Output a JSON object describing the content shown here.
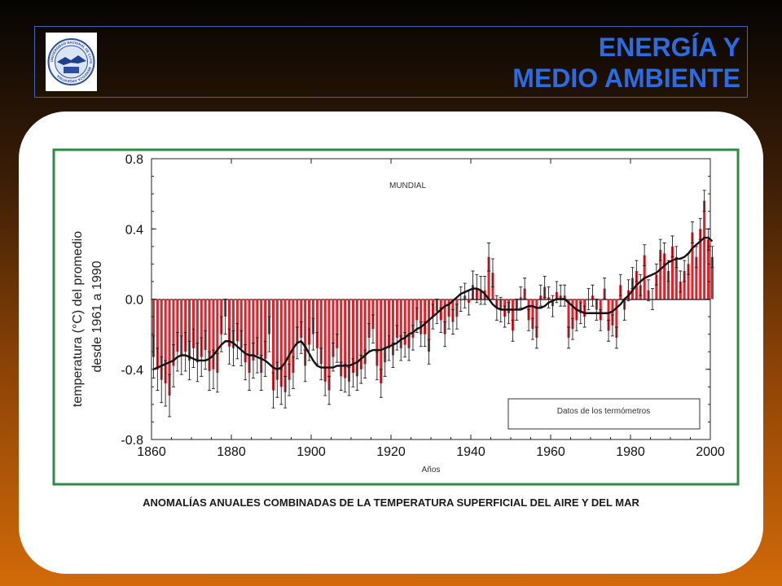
{
  "header": {
    "title_line1": "ENERGÍA Y",
    "title_line2": "MEDIO AMBIENTE"
  },
  "logo": {
    "ring_text": "UNIVERSIDAD NACIONAL DE CUYO · MENDOZA ARGENTINA"
  },
  "caption": "ANOMALÍAS ANUALES COMBINADAS DE LA TEMPERATURA SUPERFICIAL DEL AIRE Y DEL MAR",
  "colors": {
    "bar": "#d8262f",
    "smooth_line": "#111111",
    "frame_border": "#2e8b45",
    "title": "#2d6be0"
  },
  "chart_data": {
    "type": "bar",
    "annotation": "MUNDIAL",
    "legend_label": "Datos de los termómetros",
    "legend_position": "bottom-right",
    "xlabel": "Años",
    "ylabel_line1": "temperatura (°C) del promedio",
    "ylabel_line2": "desde 1961 a 1990",
    "xlim": [
      1860,
      2000
    ],
    "ylim": [
      -0.8,
      0.8
    ],
    "x_ticks": [
      "1860",
      "1880",
      "1900",
      "1920",
      "1940",
      "1960",
      "1980",
      "2000"
    ],
    "y_ticks": [
      "0.8",
      "0.4",
      "0.0",
      "-0.4",
      "-0.8"
    ],
    "grid": false,
    "years": [
      1860,
      1861,
      1862,
      1863,
      1864,
      1865,
      1866,
      1867,
      1868,
      1869,
      1870,
      1871,
      1872,
      1873,
      1874,
      1875,
      1876,
      1877,
      1878,
      1879,
      1880,
      1881,
      1882,
      1883,
      1884,
      1885,
      1886,
      1887,
      1888,
      1889,
      1890,
      1891,
      1892,
      1893,
      1894,
      1895,
      1896,
      1897,
      1898,
      1899,
      1900,
      1901,
      1902,
      1903,
      1904,
      1905,
      1906,
      1907,
      1908,
      1909,
      1910,
      1911,
      1912,
      1913,
      1914,
      1915,
      1916,
      1917,
      1918,
      1919,
      1920,
      1921,
      1922,
      1923,
      1924,
      1925,
      1926,
      1927,
      1928,
      1929,
      1930,
      1931,
      1932,
      1933,
      1934,
      1935,
      1936,
      1937,
      1938,
      1939,
      1940,
      1941,
      1942,
      1943,
      1944,
      1945,
      1946,
      1947,
      1948,
      1949,
      1950,
      1951,
      1952,
      1953,
      1954,
      1955,
      1956,
      1957,
      1958,
      1959,
      1960,
      1961,
      1962,
      1963,
      1964,
      1965,
      1966,
      1967,
      1968,
      1969,
      1970,
      1971,
      1972,
      1973,
      1974,
      1975,
      1976,
      1977,
      1978,
      1979,
      1980,
      1981,
      1982,
      1983,
      1984,
      1985,
      1986,
      1987,
      1988,
      1989,
      1990,
      1991,
      1992,
      1993,
      1994,
      1995,
      1996,
      1997,
      1998,
      1999,
      2000
    ],
    "values": [
      -0.33,
      -0.4,
      -0.46,
      -0.48,
      -0.55,
      -0.38,
      -0.3,
      -0.32,
      -0.3,
      -0.35,
      -0.28,
      -0.36,
      -0.33,
      -0.29,
      -0.41,
      -0.4,
      -0.42,
      -0.2,
      -0.1,
      -0.27,
      -0.28,
      -0.24,
      -0.28,
      -0.36,
      -0.42,
      -0.35,
      -0.32,
      -0.42,
      -0.34,
      -0.2,
      -0.52,
      -0.46,
      -0.5,
      -0.53,
      -0.46,
      -0.42,
      -0.25,
      -0.22,
      -0.38,
      -0.26,
      -0.2,
      -0.28,
      -0.37,
      -0.47,
      -0.52,
      -0.33,
      -0.28,
      -0.44,
      -0.45,
      -0.47,
      -0.42,
      -0.44,
      -0.4,
      -0.37,
      -0.22,
      -0.17,
      -0.38,
      -0.48,
      -0.36,
      -0.28,
      -0.32,
      -0.22,
      -0.28,
      -0.26,
      -0.28,
      -0.22,
      -0.12,
      -0.2,
      -0.2,
      -0.3,
      -0.1,
      -0.07,
      -0.12,
      -0.2,
      -0.1,
      -0.13,
      -0.1,
      0.0,
      0.02,
      -0.02,
      0.08,
      0.06,
      0.05,
      0.05,
      0.24,
      0.15,
      -0.05,
      -0.06,
      -0.1,
      -0.08,
      -0.18,
      -0.06,
      0.01,
      0.06,
      -0.12,
      -0.17,
      -0.22,
      0.02,
      0.07,
      0.01,
      -0.04,
      0.04,
      0.02,
      0.02,
      -0.22,
      -0.17,
      -0.12,
      -0.08,
      -0.1,
      0.0,
      0.02,
      -0.06,
      -0.12,
      0.06,
      -0.18,
      -0.15,
      -0.22,
      0.08,
      -0.06,
      0.05,
      0.12,
      0.16,
      0.08,
      0.25,
      0.05,
      0.0,
      0.14,
      0.28,
      0.26,
      0.16,
      0.3,
      0.24,
      0.1,
      0.16,
      0.2,
      0.38,
      0.24,
      0.4,
      0.56,
      0.34,
      0.24
    ],
    "smoothed": [
      -0.4,
      -0.39,
      -0.38,
      -0.37,
      -0.36,
      -0.35,
      -0.33,
      -0.32,
      -0.32,
      -0.33,
      -0.34,
      -0.35,
      -0.35,
      -0.35,
      -0.34,
      -0.32,
      -0.29,
      -0.26,
      -0.24,
      -0.24,
      -0.25,
      -0.27,
      -0.29,
      -0.31,
      -0.32,
      -0.32,
      -0.33,
      -0.34,
      -0.35,
      -0.37,
      -0.39,
      -0.4,
      -0.39,
      -0.36,
      -0.32,
      -0.28,
      -0.25,
      -0.24,
      -0.27,
      -0.31,
      -0.35,
      -0.38,
      -0.39,
      -0.39,
      -0.39,
      -0.39,
      -0.38,
      -0.38,
      -0.38,
      -0.38,
      -0.37,
      -0.36,
      -0.34,
      -0.32,
      -0.3,
      -0.29,
      -0.29,
      -0.29,
      -0.28,
      -0.27,
      -0.26,
      -0.25,
      -0.23,
      -0.22,
      -0.2,
      -0.19,
      -0.17,
      -0.16,
      -0.14,
      -0.12,
      -0.1,
      -0.08,
      -0.06,
      -0.04,
      -0.03,
      -0.01,
      0.01,
      0.03,
      0.04,
      0.05,
      0.06,
      0.06,
      0.05,
      0.03,
      0.0,
      -0.03,
      -0.05,
      -0.06,
      -0.06,
      -0.06,
      -0.06,
      -0.06,
      -0.06,
      -0.05,
      -0.04,
      -0.04,
      -0.05,
      -0.05,
      -0.04,
      -0.02,
      -0.01,
      0.0,
      0.0,
      0.0,
      -0.02,
      -0.04,
      -0.06,
      -0.07,
      -0.08,
      -0.08,
      -0.08,
      -0.08,
      -0.08,
      -0.08,
      -0.08,
      -0.07,
      -0.05,
      -0.03,
      0.0,
      0.02,
      0.05,
      0.08,
      0.1,
      0.12,
      0.13,
      0.14,
      0.15,
      0.17,
      0.19,
      0.21,
      0.22,
      0.23,
      0.23,
      0.24,
      0.26,
      0.29,
      0.31,
      0.33,
      0.35,
      0.35,
      0.33
    ],
    "error": [
      0.12,
      0.12,
      0.13,
      0.13,
      0.12,
      0.12,
      0.11,
      0.11,
      0.11,
      0.11,
      0.11,
      0.11,
      0.11,
      0.11,
      0.11,
      0.11,
      0.11,
      0.1,
      0.1,
      0.1,
      0.1,
      0.1,
      0.1,
      0.1,
      0.1,
      0.1,
      0.1,
      0.1,
      0.1,
      0.1,
      0.1,
      0.1,
      0.1,
      0.09,
      0.09,
      0.09,
      0.09,
      0.09,
      0.09,
      0.09,
      0.09,
      0.09,
      0.09,
      0.08,
      0.08,
      0.08,
      0.08,
      0.08,
      0.08,
      0.08,
      0.08,
      0.08,
      0.08,
      0.08,
      0.08,
      0.08,
      0.08,
      0.08,
      0.08,
      0.07,
      0.07,
      0.07,
      0.07,
      0.07,
      0.07,
      0.07,
      0.07,
      0.07,
      0.07,
      0.07,
      0.07,
      0.07,
      0.07,
      0.07,
      0.07,
      0.07,
      0.07,
      0.07,
      0.07,
      0.07,
      0.08,
      0.08,
      0.08,
      0.08,
      0.08,
      0.08,
      0.07,
      0.07,
      0.06,
      0.06,
      0.06,
      0.06,
      0.06,
      0.06,
      0.06,
      0.06,
      0.06,
      0.06,
      0.06,
      0.06,
      0.06,
      0.06,
      0.06,
      0.06,
      0.06,
      0.06,
      0.06,
      0.06,
      0.06,
      0.06,
      0.06,
      0.06,
      0.06,
      0.06,
      0.06,
      0.06,
      0.06,
      0.06,
      0.06,
      0.06,
      0.06,
      0.06,
      0.06,
      0.06,
      0.06,
      0.06,
      0.06,
      0.06,
      0.06,
      0.06,
      0.06,
      0.06,
      0.06,
      0.06,
      0.06,
      0.06,
      0.06,
      0.06,
      0.06,
      0.06,
      0.06
    ]
  }
}
